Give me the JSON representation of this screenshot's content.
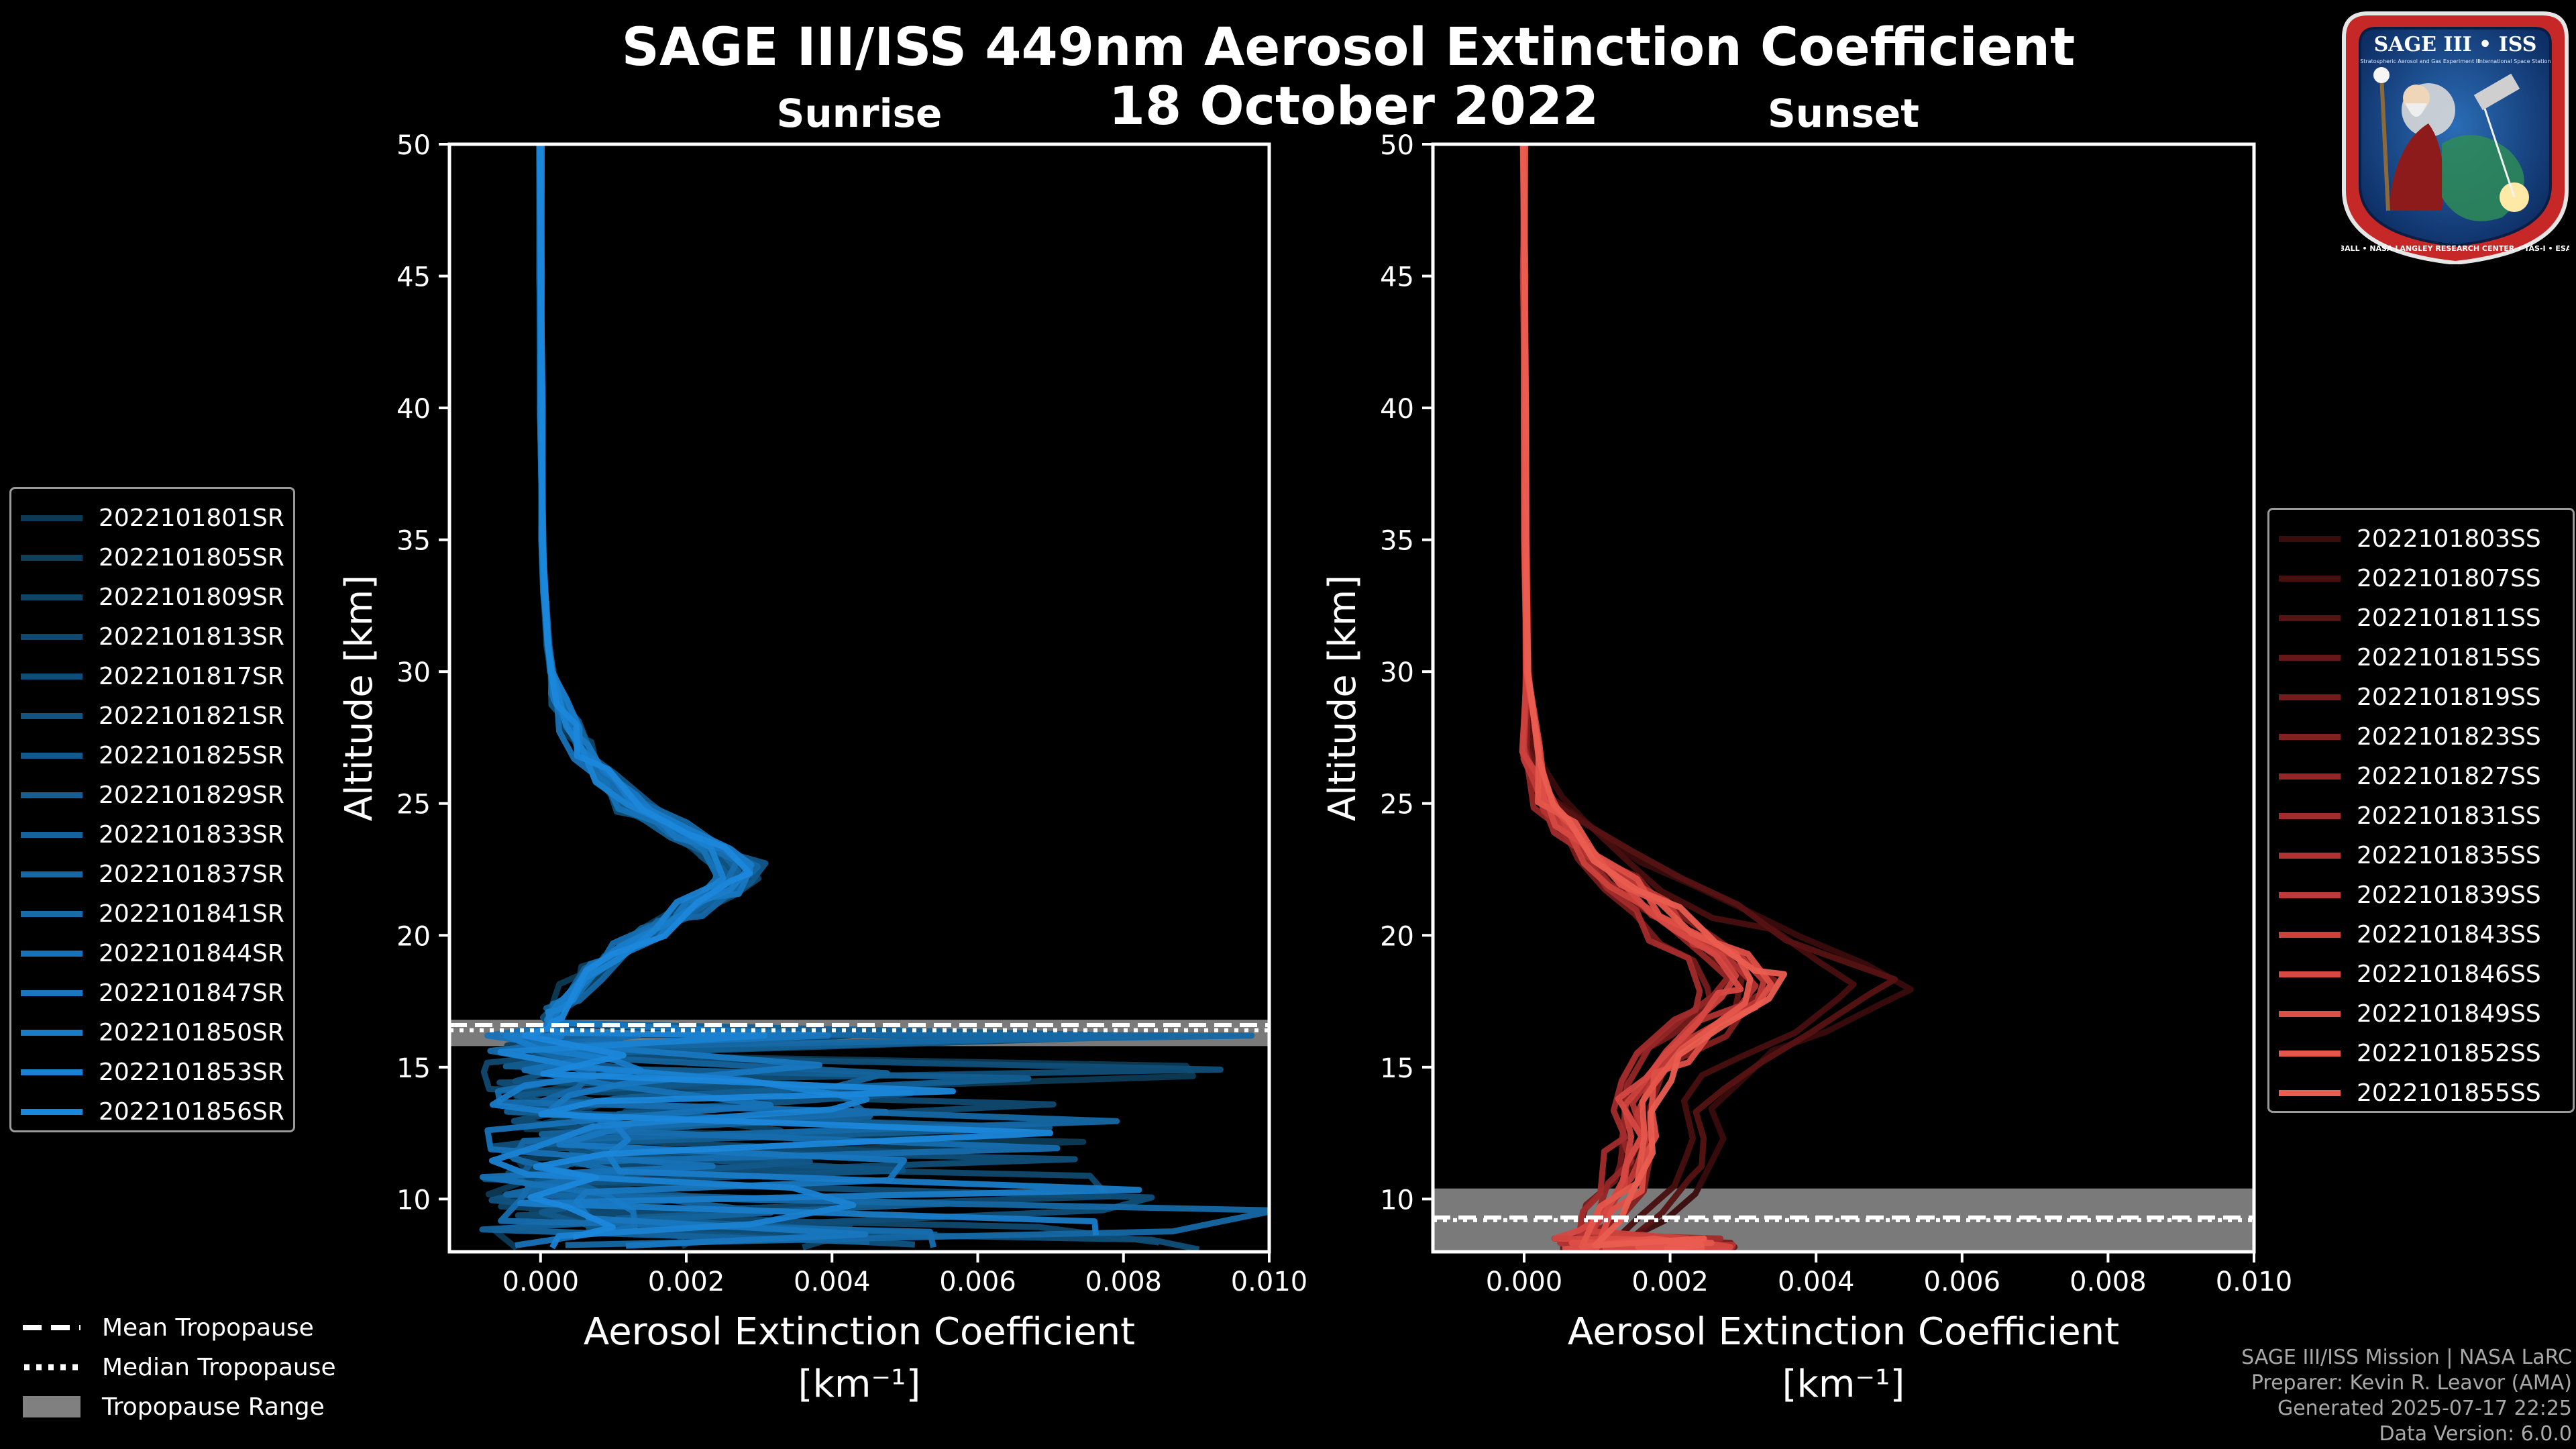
{
  "title": {
    "line1": "SAGE III/ISS 449nm Aerosol Extinction Coefficient",
    "line2": "18 October 2022"
  },
  "colors": {
    "background": "#000000",
    "sunrise_base": "#1f9fdf",
    "sunset_base": "#e45a4e",
    "tropopause_band": "#7a7a7a"
  },
  "logo": {
    "top_text": "SAGE III • ISS",
    "ring_text": "BALL • NASA LANGLEY RESEARCH CENTER • TAS-I • ESA",
    "subtitle": "Stratospheric Aerosol and Gas Experiment III",
    "station": "International Space Station"
  },
  "chart_data": [
    {
      "type": "line",
      "panel": "sunrise",
      "title": "Sunrise",
      "xlabel": "Aerosol Extinction Coefficient",
      "xunit": "[km⁻¹]",
      "ylabel": "Altitude [km]",
      "xlim": [
        -0.00125,
        0.01
      ],
      "ylim": [
        8,
        50
      ],
      "xticks": [
        0.0,
        0.002,
        0.004,
        0.006,
        0.008,
        0.01
      ],
      "xtick_labels": [
        "0.000",
        "0.002",
        "0.004",
        "0.006",
        "0.008",
        "0.010"
      ],
      "yticks": [
        10,
        15,
        20,
        25,
        30,
        35,
        40,
        45,
        50
      ],
      "ytick_labels": [
        "10",
        "15",
        "20",
        "25",
        "30",
        "35",
        "40",
        "45",
        "50"
      ],
      "tropopause": {
        "mean": 16.6,
        "median": 16.4,
        "range": [
          15.8,
          16.8
        ]
      },
      "series_names": [
        "2022101801SR",
        "2022101805SR",
        "2022101809SR",
        "2022101813SR",
        "2022101817SR",
        "2022101821SR",
        "2022101825SR",
        "2022101829SR",
        "2022101833SR",
        "2022101837SR",
        "2022101841SR",
        "2022101844SR",
        "2022101847SR",
        "2022101850SR",
        "2022101853SR",
        "2022101856SR"
      ],
      "series_colors": [
        "#0c3a55",
        "#0d3f5e",
        "#0e4466",
        "#0f496f",
        "#104e78",
        "#115381",
        "#12588a",
        "#135e93",
        "#14639c",
        "#1568a5",
        "#166dae",
        "#1772b7",
        "#1877c0",
        "#197cc9",
        "#1a82d2",
        "#1b87db"
      ],
      "profile_template": {
        "alt": [
          50,
          45,
          40,
          35,
          33,
          31,
          30,
          29,
          28,
          27,
          26,
          25,
          24,
          23.2,
          22.5,
          21.8,
          21.0,
          20.2,
          19.4,
          18.6,
          17.8,
          17.2,
          16.8,
          16.4
        ],
        "ext": [
          0.0,
          0.0,
          1e-05,
          3e-05,
          5e-05,
          0.0001,
          0.00015,
          0.00025,
          0.0004,
          0.0006,
          0.0009,
          0.0013,
          0.0019,
          0.0025,
          0.0028,
          0.0026,
          0.0021,
          0.0016,
          0.0011,
          0.0007,
          0.0004,
          0.0002,
          0.00015,
          0.0002
        ]
      },
      "peak_values": [
        0.0026,
        0.0027,
        0.0028,
        0.0029,
        0.0025,
        0.0027,
        0.003,
        0.0026,
        0.0028,
        0.0029,
        0.0027,
        0.0025,
        0.0028,
        0.0029,
        0.0026,
        0.0028
      ],
      "lower_spikes": [
        0.0101,
        0.0024,
        0.0053,
        0.0086,
        0.0101,
        0.0064,
        0.0039,
        0.0088,
        0.0049,
        0.0101,
        0.0072,
        0.0034,
        0.0062,
        0.0101,
        0.0045,
        0.0084
      ]
    },
    {
      "type": "line",
      "panel": "sunset",
      "title": "Sunset",
      "xlabel": "Aerosol Extinction Coefficient",
      "xunit": "[km⁻¹]",
      "ylabel": "Altitude [km]",
      "xlim": [
        -0.00125,
        0.01
      ],
      "ylim": [
        8,
        50
      ],
      "xticks": [
        0.0,
        0.002,
        0.004,
        0.006,
        0.008,
        0.01
      ],
      "xtick_labels": [
        "0.000",
        "0.002",
        "0.004",
        "0.006",
        "0.008",
        "0.010"
      ],
      "yticks": [
        10,
        15,
        20,
        25,
        30,
        35,
        40,
        45,
        50
      ],
      "ytick_labels": [
        "10",
        "15",
        "20",
        "25",
        "30",
        "35",
        "40",
        "45",
        "50"
      ],
      "tropopause": {
        "mean": 9.3,
        "median": 9.2,
        "range": [
          8.0,
          10.4
        ]
      },
      "series_names": [
        "2022101803SS",
        "2022101807SS",
        "2022101811SS",
        "2022101815SS",
        "2022101819SS",
        "2022101823SS",
        "2022101827SS",
        "2022101831SS",
        "2022101835SS",
        "2022101839SS",
        "2022101843SS",
        "2022101846SS",
        "2022101849SS",
        "2022101852SS",
        "2022101855SS"
      ],
      "series_colors": [
        "#3a0c0c",
        "#480f0f",
        "#571313",
        "#661717",
        "#751b1b",
        "#842020",
        "#932626",
        "#a22c2b",
        "#b13331",
        "#bf3a36",
        "#cc413c",
        "#d64842",
        "#de4f47",
        "#e5564b",
        "#ea5d50"
      ],
      "profile_template": {
        "alt": [
          50,
          45,
          40,
          35,
          30,
          27,
          25,
          24,
          23,
          22,
          21,
          20,
          19,
          18.2,
          17.5,
          16.5,
          15.5,
          14.5,
          13.5,
          12.5,
          11.5,
          10.5,
          9.5,
          8.5
        ],
        "ext": [
          0.0,
          0.0,
          1e-05,
          2e-05,
          4e-05,
          0.0001,
          0.0003,
          0.0006,
          0.001,
          0.0014,
          0.0019,
          0.0024,
          0.0029,
          0.0033,
          0.0031,
          0.0026,
          0.0021,
          0.0018,
          0.0016,
          0.0017,
          0.0016,
          0.0015,
          0.0012,
          0.0009
        ]
      },
      "peak_values": [
        0.0053,
        0.0046,
        0.005,
        0.003,
        0.0026,
        0.0034,
        0.0028,
        0.0025,
        0.0031,
        0.0033,
        0.003,
        0.0029,
        0.0034,
        0.0032,
        0.0035
      ]
    }
  ],
  "tropopause_legend": {
    "mean": "Mean Tropopause",
    "median": "Median Tropopause",
    "range": "Tropopause Range"
  },
  "footer": {
    "line1": "SAGE III/ISS Mission | NASA LaRC",
    "line2": "Preparer: Kevin R. Leavor (AMA)",
    "line3": "Generated 2025-07-17 22:25",
    "line4": "Data Version: 6.0.0"
  }
}
